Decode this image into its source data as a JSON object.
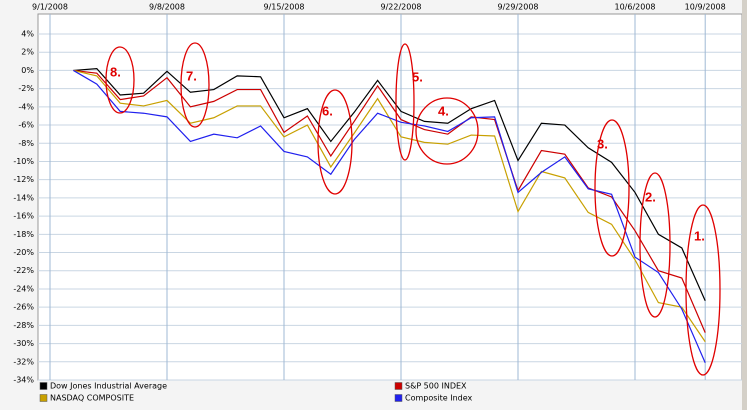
{
  "chart_data": {
    "type": "line",
    "categories": [
      "9/1/2008",
      null,
      null,
      null,
      null,
      "9/8/2008",
      null,
      null,
      null,
      null,
      "9/15/2008",
      null,
      null,
      null,
      null,
      "9/22/2008",
      null,
      null,
      null,
      null,
      "9/29/2008",
      null,
      null,
      null,
      null,
      "10/6/2008",
      null,
      null,
      "10/9/2008"
    ],
    "series": [
      {
        "name": "Dow Jones Industrial Average",
        "color": "#000000",
        "values": [
          null,
          0,
          0.2,
          -2.7,
          -2.5,
          -0.1,
          -2.4,
          -2.1,
          -0.6,
          -0.7,
          -5.2,
          -4.2,
          -7.8,
          -4.6,
          -1.1,
          -4.5,
          -5.6,
          -5.8,
          -4.2,
          -3.3,
          -9.9,
          -5.8,
          -6.0,
          -8.5,
          -10.1,
          -13.4,
          -18.0,
          -19.5,
          -25.3
        ]
      },
      {
        "name": "S&P 500 INDEX",
        "color": "#cc0000",
        "values": [
          null,
          0,
          -0.3,
          -3.2,
          -2.8,
          -0.8,
          -4.0,
          -3.4,
          -2.1,
          -2.1,
          -6.8,
          -5.0,
          -9.4,
          -5.6,
          -1.7,
          -5.4,
          -6.5,
          -7.0,
          -5.1,
          -5.4,
          -13.2,
          -8.8,
          -9.2,
          -12.9,
          -13.9,
          -17.6,
          -22.0,
          -22.8,
          -28.8
        ]
      },
      {
        "name": "NASDAQ COMPOSITE",
        "color": "#c8a000",
        "values": [
          null,
          0,
          -0.6,
          -3.6,
          -3.9,
          -3.3,
          -5.8,
          -5.2,
          -3.9,
          -3.9,
          -7.3,
          -6.0,
          -10.6,
          -6.9,
          -3.1,
          -7.3,
          -7.9,
          -8.1,
          -7.1,
          -7.2,
          -15.5,
          -11.1,
          -11.8,
          -15.6,
          -16.9,
          -20.8,
          -25.5,
          -26.0,
          -29.8
        ]
      },
      {
        "name": "Composite Index",
        "color": "#2020ee",
        "values": [
          null,
          0,
          -1.5,
          -4.5,
          -4.7,
          -5.1,
          -7.8,
          -7.0,
          -7.4,
          -6.1,
          -8.9,
          -9.5,
          -11.4,
          -7.6,
          -4.7,
          -5.7,
          -6.1,
          -6.7,
          -5.2,
          -5.1,
          -13.4,
          -11.2,
          -9.5,
          -13.0,
          -13.6,
          -20.5,
          -22.2,
          -26.2,
          -32.1
        ]
      }
    ],
    "ylim": [
      4,
      -34
    ],
    "yticks": [
      {
        "value": 4,
        "label": "4%"
      },
      {
        "value": 2,
        "label": "2%"
      },
      {
        "value": 0,
        "label": "0%"
      },
      {
        "value": -2,
        "label": "-2%"
      },
      {
        "value": -4,
        "label": "-4%"
      },
      {
        "value": -6,
        "label": "-6%"
      },
      {
        "value": -8,
        "label": "-8%"
      },
      {
        "value": -10,
        "label": "-10%"
      },
      {
        "value": -12,
        "label": "-12%"
      },
      {
        "value": -14,
        "label": "-14%"
      },
      {
        "value": -16,
        "label": "-16%"
      },
      {
        "value": -18,
        "label": "-18%"
      },
      {
        "value": -20,
        "label": "-20%"
      },
      {
        "value": -22,
        "label": "-22%"
      },
      {
        "value": -24,
        "label": "-24%"
      },
      {
        "value": -26,
        "label": "-26%"
      },
      {
        "value": -28,
        "label": "-28%"
      },
      {
        "value": -30,
        "label": "-30%"
      },
      {
        "value": -32,
        "label": "-32%"
      },
      {
        "value": -34,
        "label": "-34%"
      }
    ],
    "grid": true,
    "annotations": [
      "8.",
      "7.",
      "6.",
      "5.",
      "4.",
      "3.",
      "2.",
      "1."
    ]
  }
}
